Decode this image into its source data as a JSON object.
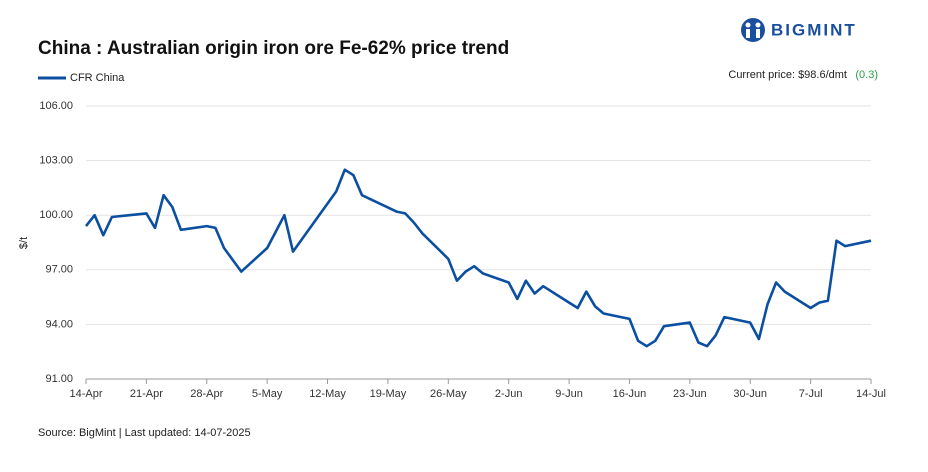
{
  "chart_data": {
    "type": "line",
    "title": "China : Australian origin iron ore Fe-62% price trend",
    "brand": "BIGMINT",
    "current_price": "Current price: $98.6/dmt",
    "change": "(0.3)",
    "source": "Source: BigMint | Last updated: 14-07-2025",
    "ylabel": "$/t",
    "x": [
      "14-Apr",
      "15-Apr",
      "16-Apr",
      "17-Apr",
      "21-Apr",
      "22-Apr",
      "23-Apr",
      "24-Apr",
      "25-Apr",
      "28-Apr",
      "29-Apr",
      "30-Apr",
      "2-May",
      "5-May",
      "6-May",
      "7-May",
      "8-May",
      "13-May",
      "14-May",
      "15-May",
      "16-May",
      "20-May",
      "21-May",
      "22-May",
      "23-May",
      "26-May",
      "27-May",
      "28-May",
      "29-May",
      "30-May",
      "2-Jun",
      "3-Jun",
      "4-Jun",
      "5-Jun",
      "6-Jun",
      "9-Jun",
      "10-Jun",
      "11-Jun",
      "12-Jun",
      "13-Jun",
      "16-Jun",
      "17-Jun",
      "18-Jun",
      "19-Jun",
      "20-Jun",
      "23-Jun",
      "24-Jun",
      "25-Jun",
      "26-Jun",
      "27-Jun",
      "30-Jun",
      "1-Jul",
      "2-Jul",
      "3-Jul",
      "4-Jul",
      "7-Jul",
      "8-Jul",
      "9-Jul",
      "10-Jul",
      "11-Jul",
      "14-Jul"
    ],
    "series": [
      {
        "name": "CFR China",
        "color": "#0b4fa0",
        "values": [
          99.4,
          100.0,
          98.9,
          99.9,
          100.1,
          99.3,
          101.1,
          100.45,
          99.2,
          99.4,
          99.3,
          98.2,
          96.9,
          98.2,
          99.1,
          100.0,
          98.0,
          101.3,
          102.5,
          102.2,
          101.1,
          100.2,
          100.1,
          99.6,
          99.0,
          97.6,
          96.4,
          96.9,
          97.2,
          96.8,
          96.3,
          95.4,
          96.4,
          95.7,
          96.1,
          95.2,
          94.9,
          95.8,
          95.0,
          94.6,
          94.3,
          93.1,
          92.8,
          93.1,
          93.9,
          94.1,
          93.0,
          92.8,
          93.4,
          94.4,
          94.1,
          93.2,
          95.1,
          96.3,
          95.8,
          94.9,
          95.2,
          95.3,
          98.6,
          98.3,
          98.6
        ]
      }
    ],
    "xlim": [
      "14-Apr",
      "14-Jul"
    ],
    "xticks": [
      "14-Apr",
      "21-Apr",
      "28-Apr",
      "5-May",
      "12-May",
      "19-May",
      "26-May",
      "2-Jun",
      "9-Jun",
      "16-Jun",
      "23-Jun",
      "30-Jun",
      "7-Jul",
      "14-Jul"
    ],
    "ylim": [
      91,
      106
    ],
    "yticks": [
      {
        "value": 91,
        "label": "91.00"
      },
      {
        "value": 94,
        "label": "94.00"
      },
      {
        "value": 97,
        "label": "97.00"
      },
      {
        "value": 100,
        "label": "100.00"
      },
      {
        "value": 103,
        "label": "103.00"
      },
      {
        "value": 106,
        "label": "106.00"
      }
    ],
    "grid": true
  }
}
